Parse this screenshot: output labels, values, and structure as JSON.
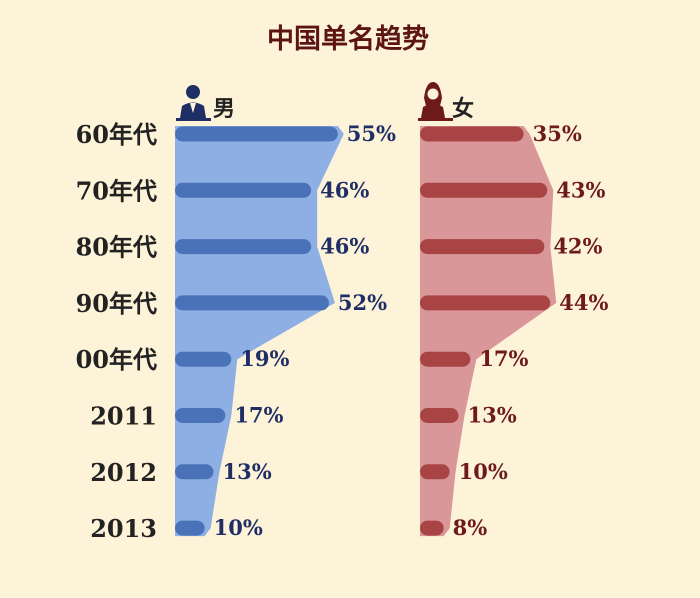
{
  "colors": {
    "background": "#fcf3d9",
    "male_bar": "#4a72b8",
    "male_fill": "#8dafe3",
    "female_bar": "#a84444",
    "female_fill": "#d9979a",
    "title": "#5c1414"
  },
  "chart_data": {
    "type": "bar",
    "title": "中国单名趋势",
    "categories": [
      "60年代",
      "70年代",
      "80年代",
      "90年代",
      "00年代",
      "2011",
      "2012",
      "2013"
    ],
    "unit": "%",
    "series": [
      {
        "name": "男",
        "icon": "male-person-icon",
        "values": [
          55,
          46,
          46,
          52,
          19,
          17,
          13,
          10
        ]
      },
      {
        "name": "女",
        "icon": "female-person-icon",
        "values": [
          35,
          43,
          42,
          44,
          17,
          13,
          10,
          8
        ]
      }
    ]
  }
}
